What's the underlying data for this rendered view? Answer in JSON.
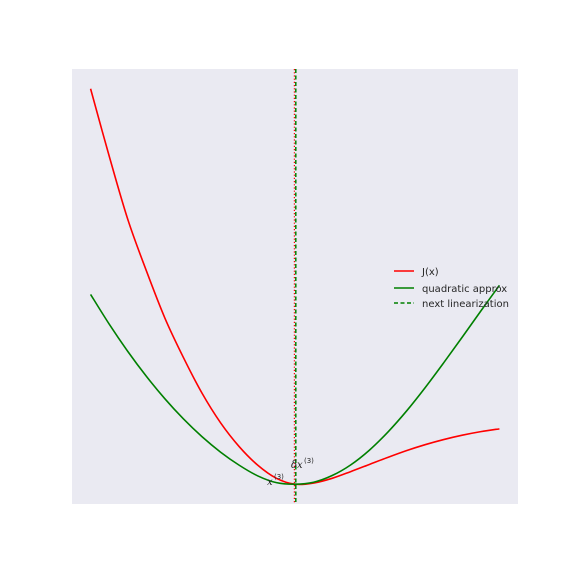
{
  "chart_data": {
    "type": "line",
    "title": "",
    "xlabel": "",
    "ylabel": "",
    "xlim": [
      -3.6,
      3.6
    ],
    "ylim": [
      -0.5,
      10.5
    ],
    "grid": false,
    "ticks_visible": false,
    "background": "#eaeaf2",
    "legend_position": "center-right",
    "series": [
      {
        "name": "J(x)",
        "color": "#ff0000",
        "style": "solid",
        "x": [
          -3.3,
          -3.0,
          -2.7,
          -2.4,
          -2.1,
          -1.8,
          -1.5,
          -1.2,
          -0.9,
          -0.6,
          -0.3,
          0.0,
          0.3,
          0.6,
          0.9,
          1.2,
          1.5,
          1.8,
          2.1,
          2.4,
          2.7,
          3.0,
          3.3
        ],
        "y": [
          10.0,
          8.3,
          6.7,
          5.4,
          4.2,
          3.2,
          2.3,
          1.55,
          0.95,
          0.48,
          0.15,
          0.0,
          0.03,
          0.15,
          0.32,
          0.5,
          0.68,
          0.85,
          1.0,
          1.13,
          1.24,
          1.33,
          1.4
        ]
      },
      {
        "name": "quadratic approx",
        "color": "#008000",
        "style": "solid",
        "x": [
          -3.3,
          -3.0,
          -2.7,
          -2.4,
          -2.1,
          -1.8,
          -1.5,
          -1.2,
          -0.9,
          -0.6,
          -0.3,
          0.0,
          0.3,
          0.6,
          0.9,
          1.2,
          1.5,
          1.8,
          2.1,
          2.4,
          2.7,
          3.0,
          3.3
        ],
        "y": [
          4.8,
          4.05,
          3.36,
          2.73,
          2.16,
          1.65,
          1.2,
          0.81,
          0.48,
          0.21,
          0.04,
          0.0,
          0.05,
          0.22,
          0.49,
          0.86,
          1.32,
          1.85,
          2.44,
          3.07,
          3.72,
          4.38,
          5.03
        ]
      }
    ],
    "vlines": [
      {
        "name": "next linearization",
        "x": 0.0,
        "color": "#008000",
        "style": "dashed"
      },
      {
        "name": "",
        "x": 0.0,
        "color": "#ff0000",
        "style": "dotted"
      }
    ],
    "annotations": [
      {
        "text": "x",
        "sup": "(3)",
        "x": -0.45,
        "y": 0.05
      },
      {
        "text": "δx",
        "sup": "(3)",
        "x": -0.2,
        "y": 0.4
      }
    ],
    "legend": [
      {
        "label": "J(x)",
        "color": "#ff0000",
        "style": "solid"
      },
      {
        "label": "quadratic approx",
        "color": "#008000",
        "style": "solid"
      },
      {
        "label": "next linearization",
        "color": "#008000",
        "style": "dashed"
      }
    ]
  }
}
